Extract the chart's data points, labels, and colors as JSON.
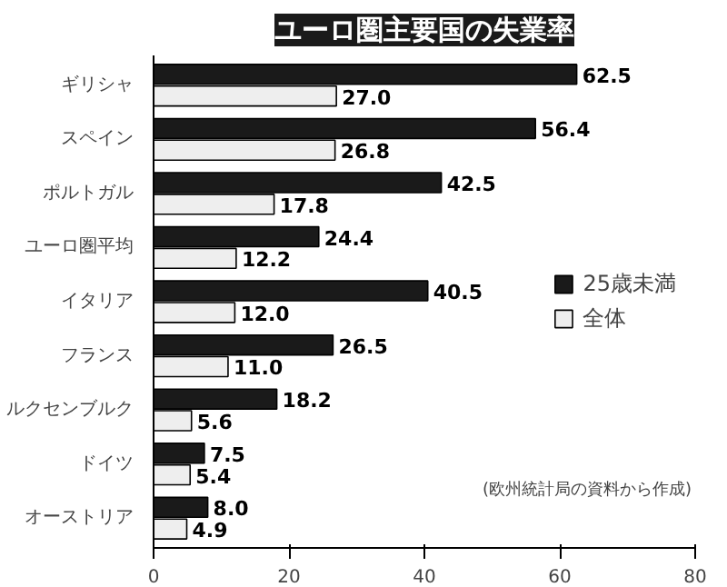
{
  "chart_data": {
    "type": "bar",
    "orientation": "horizontal",
    "title": "ユーロ圏主要国の失業率",
    "categories": [
      "ギリシャ",
      "スペイン",
      "ポルトガル",
      "ユーロ圏平均",
      "イタリア",
      "フランス",
      "ルクセンブルク",
      "ドイツ",
      "オーストリア"
    ],
    "series": [
      {
        "name": "25歳未満",
        "color": "#1a1a1a",
        "values": [
          62.5,
          56.4,
          42.5,
          24.4,
          40.5,
          26.5,
          18.2,
          7.5,
          8.0
        ],
        "value_labels": [
          "62.5",
          "56.4",
          "42.5",
          "24.4",
          "40.5",
          "26.5",
          "18.2",
          "7.5",
          "8.0"
        ]
      },
      {
        "name": "全体",
        "color": "#eeeeee",
        "values": [
          27.0,
          26.8,
          17.8,
          12.2,
          12.0,
          11.0,
          5.6,
          5.4,
          4.9
        ],
        "value_labels": [
          "27.0",
          "26.8",
          "17.8",
          "12.2",
          "12.0",
          "11.0",
          "5.6",
          "5.4",
          "4.9"
        ]
      }
    ],
    "xlim": [
      0,
      80
    ],
    "xticks": [
      0,
      20,
      40,
      60,
      80
    ],
    "grid": false,
    "legend": "right",
    "annotations": [
      "(欧州統計局の資料から作成)"
    ]
  }
}
